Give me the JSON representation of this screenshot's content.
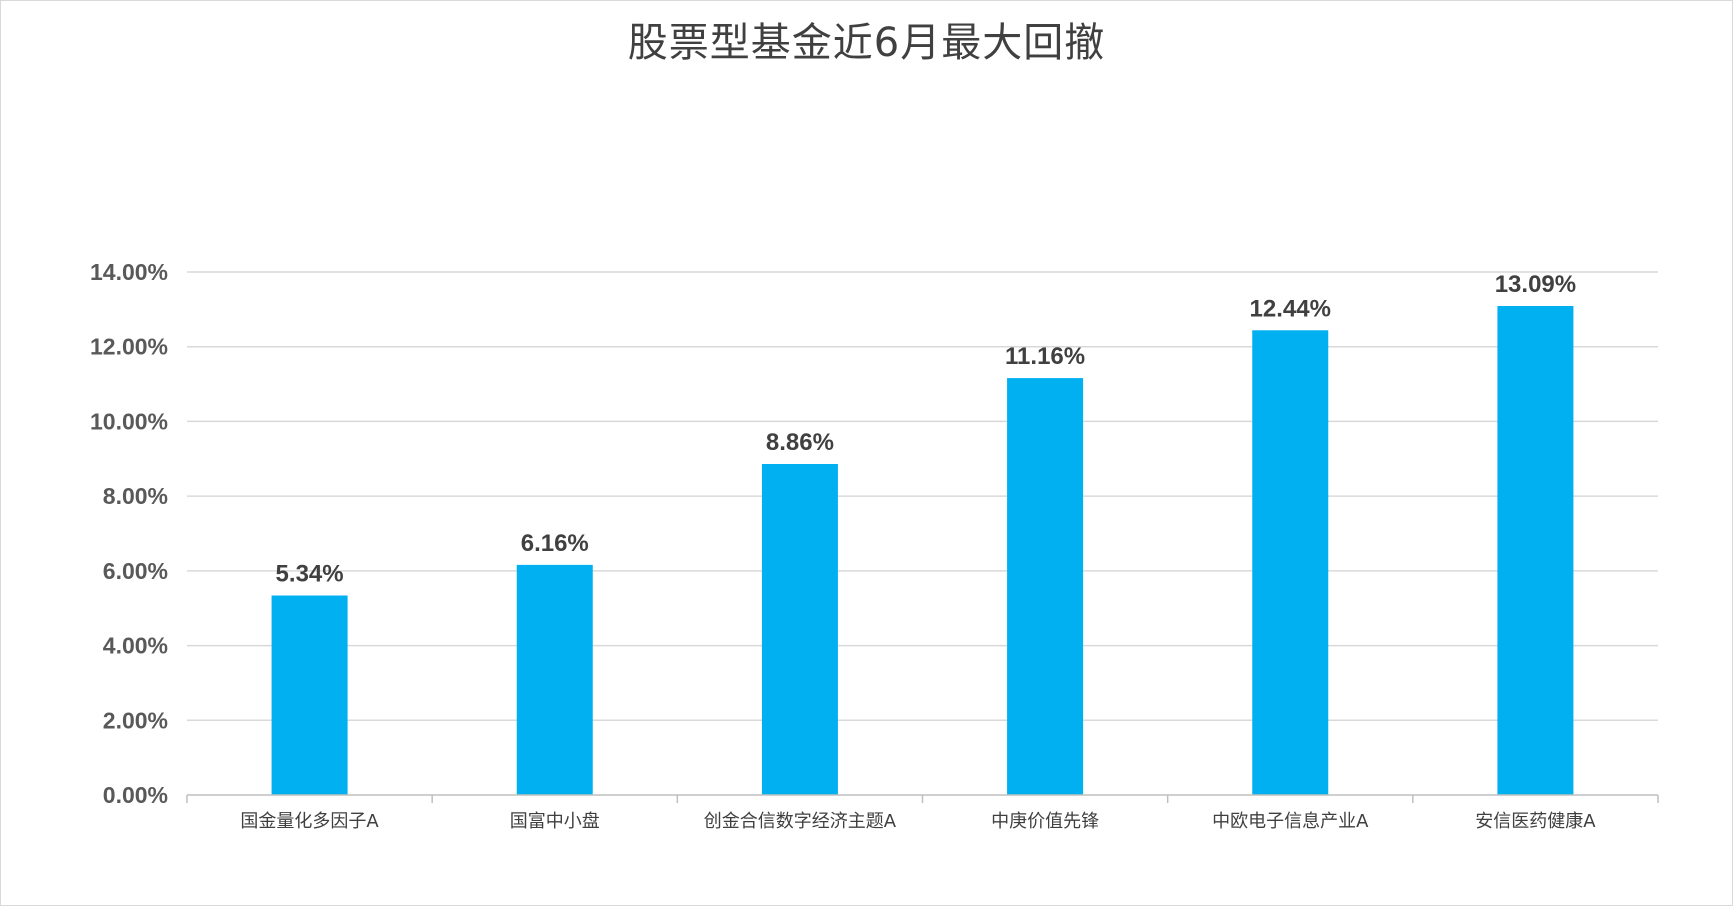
{
  "chart_data": {
    "type": "bar",
    "title": "股票型基金近6月最大回撤",
    "categories": [
      "国金量化多因子A",
      "国富中小盘",
      "创金合信数字经济主题A",
      "中庚价值先锋",
      "中欧电子信息产业A",
      "安信医药健康A"
    ],
    "values": [
      5.34,
      6.16,
      8.86,
      11.16,
      12.44,
      13.09
    ],
    "data_labels": [
      "5.34%",
      "6.16%",
      "8.86%",
      "11.16%",
      "12.44%",
      "13.09%"
    ],
    "ylim": [
      0,
      14
    ],
    "yticks": [
      0,
      2,
      4,
      6,
      8,
      10,
      12,
      14
    ],
    "ytick_labels": [
      "0.00%",
      "2.00%",
      "4.00%",
      "6.00%",
      "8.00%",
      "10.00%",
      "12.00%",
      "14.00%"
    ],
    "xlabel": "",
    "ylabel": "",
    "grid": true,
    "legend": "none",
    "bar_color": "#00b0f0",
    "grid_color": "#d9d9d9"
  }
}
